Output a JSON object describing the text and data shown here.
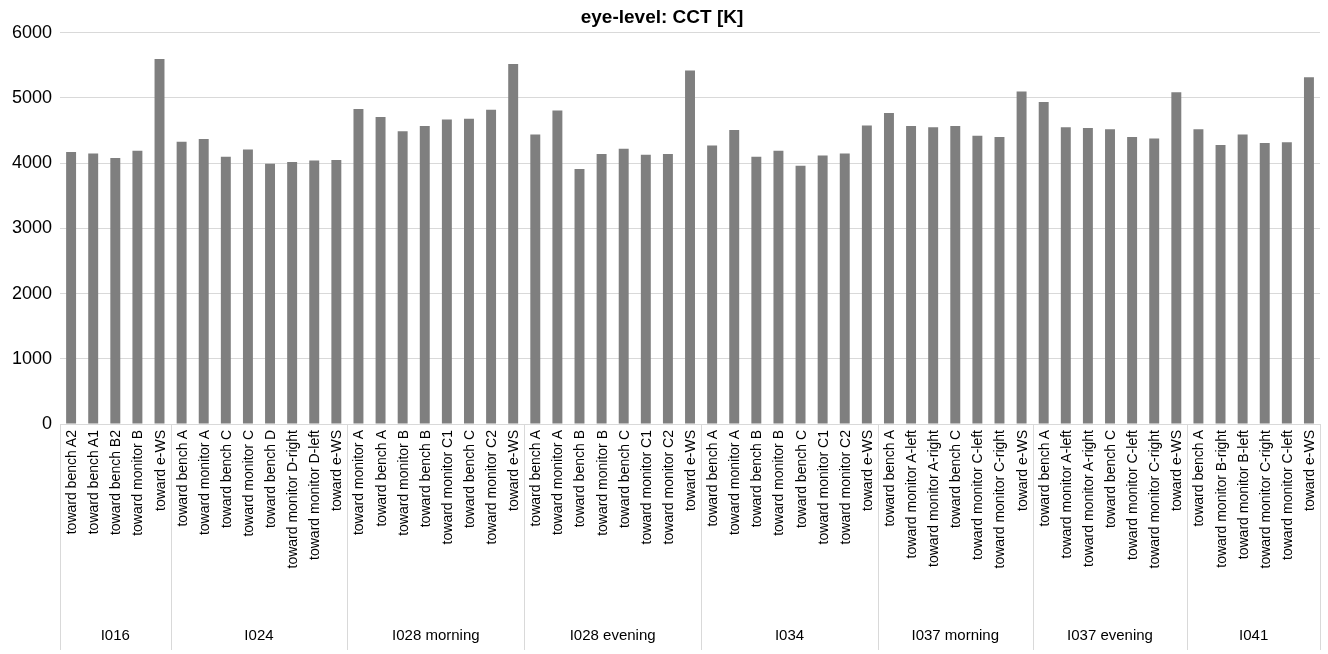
{
  "chart_data": {
    "type": "bar",
    "title": "eye-level: CCT [K]",
    "categories": [
      "toward bench A2",
      "toward bench A1",
      "toward bench B2",
      "toward monitor B",
      "toward e-WS",
      "toward bench A",
      "toward monitor A",
      "toward bench C",
      "toward monitor C",
      "toward bench D",
      "toward monitor D-right",
      "toward monitor D-left",
      "toward e-WS",
      "toward monitor A",
      "toward bench A",
      "toward monitor B",
      "toward bench B",
      "toward monitor C1",
      "toward bench C",
      "toward monitor C2",
      "toward e-WS",
      "toward bench A",
      "toward monitor A",
      "toward bench B",
      "toward monitor B",
      "toward bench C",
      "toward monitor C1",
      "toward monitor C2",
      "toward e-WS",
      "toward bench A",
      "toward monitor A",
      "toward bench B",
      "toward monitor B",
      "toward bench C",
      "toward monitor C1",
      "toward monitor C2",
      "toward e-WS",
      "toward bench A",
      "toward monitor A-left",
      "toward monitor A-right",
      "toward bench C",
      "toward monitor C-left",
      "toward monitor C-right",
      "toward e-WS",
      "toward bench A",
      "toward monitor A-left",
      "toward monitor A-right",
      "toward bench C",
      "toward monitor C-left",
      "toward monitor C-right",
      "toward e-WS",
      "toward bench A",
      "toward monitor B-right",
      "toward monitor B-left",
      "toward monitor C-right",
      "toward monitor C-left",
      "toward e-WS"
    ],
    "series": [
      {
        "color": "#7f7f7f",
        "values": [
          4170,
          4150,
          4080,
          4190,
          5600,
          null,
          null,
          null,
          null,
          null,
          null,
          null,
          null,
          null,
          null,
          null,
          null,
          null,
          null,
          null,
          null,
          null,
          null,
          null,
          null,
          null,
          null,
          null,
          null,
          null,
          null,
          null,
          null,
          null,
          null,
          null,
          null,
          null,
          null,
          null,
          null,
          null,
          null,
          null,
          null,
          null,
          null,
          null,
          null,
          null,
          null,
          null,
          null,
          null,
          null,
          null,
          null
        ]
      },
      {
        "color": "#7f7f7f",
        "values": [
          null,
          null,
          null,
          null,
          null,
          4330,
          4370,
          4100,
          4210,
          3990,
          4020,
          4040,
          4050,
          null,
          null,
          null,
          null,
          null,
          null,
          null,
          null,
          null,
          null,
          null,
          null,
          null,
          null,
          null,
          null,
          null,
          null,
          null,
          null,
          null,
          null,
          null,
          null,
          null,
          null,
          null,
          null,
          null,
          null,
          null,
          null,
          null,
          null,
          null,
          null,
          null,
          null,
          null,
          null,
          null,
          null,
          null,
          null
        ]
      },
      {
        "color": "#7f7f7f",
        "values": [
          null,
          null,
          null,
          null,
          null,
          null,
          null,
          null,
          null,
          null,
          null,
          null,
          null,
          4830,
          4710,
          4490,
          4570,
          4670,
          4680,
          4820,
          5520,
          null,
          null,
          null,
          null,
          null,
          null,
          null,
          null,
          null,
          null,
          null,
          null,
          null,
          null,
          null,
          null,
          null,
          null,
          null,
          null,
          null,
          null,
          null,
          null,
          null,
          null,
          null,
          null,
          null,
          null,
          null,
          null,
          null,
          null,
          null,
          null
        ]
      },
      {
        "color": "#7f7f7f",
        "values": [
          null,
          null,
          null,
          null,
          null,
          null,
          null,
          null,
          null,
          null,
          null,
          null,
          null,
          null,
          null,
          null,
          null,
          null,
          null,
          null,
          null,
          4440,
          4810,
          3910,
          4140,
          4220,
          4130,
          4140,
          5420,
          null,
          null,
          null,
          null,
          null,
          null,
          null,
          null,
          null,
          null,
          null,
          null,
          null,
          null,
          null,
          null,
          null,
          null,
          null,
          null,
          null,
          null,
          null,
          null,
          null,
          null,
          null,
          null
        ]
      },
      {
        "color": "#7f7f7f",
        "values": [
          null,
          null,
          null,
          null,
          null,
          null,
          null,
          null,
          null,
          null,
          null,
          null,
          null,
          null,
          null,
          null,
          null,
          null,
          null,
          null,
          null,
          null,
          null,
          null,
          null,
          null,
          null,
          null,
          null,
          4270,
          4510,
          4100,
          4190,
          3960,
          4120,
          4150,
          4580,
          null,
          null,
          null,
          null,
          null,
          null,
          null,
          null,
          null,
          null,
          null,
          null,
          null,
          null,
          null,
          null,
          null,
          null,
          null,
          null
        ]
      },
      {
        "color": "#7f7f7f",
        "values": [
          null,
          null,
          null,
          null,
          null,
          null,
          null,
          null,
          null,
          null,
          null,
          null,
          null,
          null,
          null,
          null,
          null,
          null,
          null,
          null,
          null,
          null,
          null,
          null,
          null,
          null,
          null,
          null,
          null,
          null,
          null,
          null,
          null,
          null,
          null,
          null,
          null,
          4770,
          4570,
          4550,
          4570,
          4420,
          4400,
          5100,
          null,
          null,
          null,
          null,
          null,
          null,
          null,
          null,
          null,
          null,
          null,
          null,
          null
        ]
      },
      {
        "color": "#7f7f7f",
        "values": [
          null,
          null,
          null,
          null,
          null,
          null,
          null,
          null,
          null,
          null,
          null,
          null,
          null,
          null,
          null,
          null,
          null,
          null,
          null,
          null,
          null,
          null,
          null,
          null,
          null,
          null,
          null,
          null,
          null,
          null,
          null,
          null,
          null,
          null,
          null,
          null,
          null,
          null,
          null,
          null,
          null,
          null,
          null,
          null,
          4940,
          4550,
          4540,
          4520,
          4400,
          4380,
          5090,
          null,
          null,
          null,
          null,
          null,
          null
        ]
      },
      {
        "color": "#7f7f7f",
        "values": [
          null,
          null,
          null,
          null,
          null,
          null,
          null,
          null,
          null,
          null,
          null,
          null,
          null,
          null,
          null,
          null,
          null,
          null,
          null,
          null,
          null,
          null,
          null,
          null,
          null,
          null,
          null,
          null,
          null,
          null,
          null,
          null,
          null,
          null,
          null,
          null,
          null,
          null,
          null,
          null,
          null,
          null,
          null,
          null,
          null,
          null,
          null,
          null,
          null,
          null,
          null,
          4520,
          4280,
          4440,
          4310,
          4320,
          5320
        ]
      }
    ],
    "ylim": [
      0,
      6000
    ],
    "yticks": [
      0,
      1000,
      2000,
      3000,
      4000,
      5000,
      6000
    ],
    "grid": "y",
    "legend": false,
    "annotations": [
      "I016",
      "I024",
      "I028 morning",
      "I028 evening",
      "I034",
      "I037 morning",
      "I037 evening",
      "I041"
    ]
  }
}
